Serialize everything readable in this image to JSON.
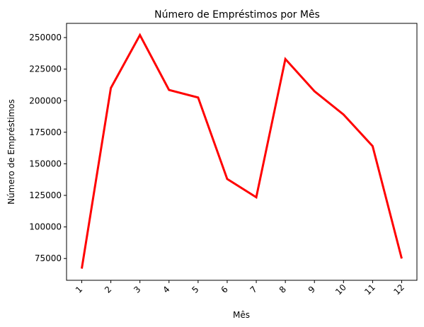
{
  "chart_data": {
    "type": "line",
    "title": "Número de Empréstimos por Mês",
    "xlabel": "Mês",
    "ylabel": "Número de Empréstimos",
    "categories": [
      "1",
      "2",
      "3",
      "4",
      "5",
      "6",
      "7",
      "8",
      "9",
      "10",
      "11",
      "12"
    ],
    "series": [
      {
        "color": "#ff0000",
        "values": [
          67000,
          210000,
          252000,
          208500,
          202500,
          138000,
          123500,
          233000,
          207500,
          189000,
          164000,
          75000
        ]
      }
    ],
    "yticks": [
      75000,
      100000,
      125000,
      150000,
      175000,
      200000,
      225000,
      250000
    ],
    "ytick_labels": [
      "75000",
      "100000",
      "125000",
      "150000",
      "175000",
      "200000",
      "225000",
      "250000"
    ],
    "ylim": [
      57750,
      261250
    ],
    "xtick_rotation": 45,
    "grid": false,
    "legend": false
  }
}
